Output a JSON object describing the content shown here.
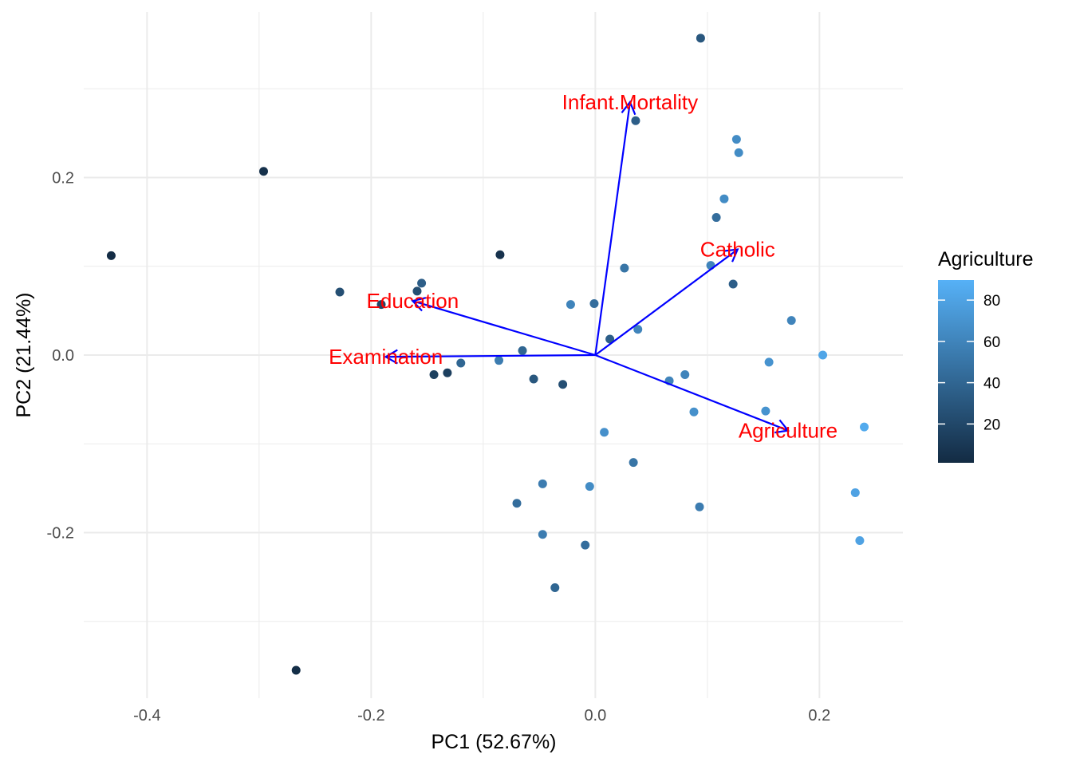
{
  "chart_data": {
    "type": "scatter",
    "xlabel": "PC1 (52.67%)",
    "ylabel": "PC2 (21.44%)",
    "xlim": [
      -0.4565,
      0.2745
    ],
    "ylim": [
      -0.3865,
      0.3865
    ],
    "x_ticks": [
      -0.4,
      -0.2,
      0.0,
      0.2
    ],
    "x_tick_labels": [
      "-0.4",
      "-0.2",
      "0.0",
      "0.2"
    ],
    "y_ticks": [
      -0.2,
      0.0,
      0.2
    ],
    "y_tick_labels": [
      "-0.2",
      "0.0",
      "0.2"
    ],
    "grid": true,
    "legend": {
      "title": "Agriculture",
      "placement": "right",
      "min": 1.2,
      "max": 89.7,
      "low_color": "#132B43",
      "high_color": "#56B1F7",
      "ticks": [
        20,
        40,
        60,
        80
      ],
      "tick_labels": [
        "20",
        "40",
        "60",
        "80"
      ]
    },
    "points": [
      {
        "x": 0.094,
        "y": 0.357,
        "agriculture": 30
      },
      {
        "x": 0.036,
        "y": 0.264,
        "agriculture": 35
      },
      {
        "x": 0.126,
        "y": 0.243,
        "agriculture": 65
      },
      {
        "x": 0.128,
        "y": 0.228,
        "agriculture": 65
      },
      {
        "x": -0.296,
        "y": 0.207,
        "agriculture": 5
      },
      {
        "x": 0.115,
        "y": 0.176,
        "agriculture": 65
      },
      {
        "x": 0.108,
        "y": 0.155,
        "agriculture": 45
      },
      {
        "x": -0.432,
        "y": 0.112,
        "agriculture": 2
      },
      {
        "x": -0.085,
        "y": 0.113,
        "agriculture": 6
      },
      {
        "x": 0.103,
        "y": 0.101,
        "agriculture": 60
      },
      {
        "x": 0.026,
        "y": 0.098,
        "agriculture": 50
      },
      {
        "x": 0.123,
        "y": 0.08,
        "agriculture": 35
      },
      {
        "x": -0.155,
        "y": 0.081,
        "agriculture": 35
      },
      {
        "x": -0.159,
        "y": 0.072,
        "agriculture": 25
      },
      {
        "x": -0.228,
        "y": 0.071,
        "agriculture": 25
      },
      {
        "x": -0.191,
        "y": 0.057,
        "agriculture": 20
      },
      {
        "x": -0.022,
        "y": 0.057,
        "agriculture": 60
      },
      {
        "x": -0.001,
        "y": 0.058,
        "agriculture": 45
      },
      {
        "x": 0.175,
        "y": 0.039,
        "agriculture": 60
      },
      {
        "x": 0.038,
        "y": 0.029,
        "agriculture": 60
      },
      {
        "x": 0.013,
        "y": 0.018,
        "agriculture": 35
      },
      {
        "x": -0.065,
        "y": 0.005,
        "agriculture": 40
      },
      {
        "x": 0.203,
        "y": 0.0,
        "agriculture": 82
      },
      {
        "x": -0.086,
        "y": -0.006,
        "agriculture": 55
      },
      {
        "x": 0.155,
        "y": -0.008,
        "agriculture": 70
      },
      {
        "x": -0.12,
        "y": -0.009,
        "agriculture": 40
      },
      {
        "x": -0.132,
        "y": -0.02,
        "agriculture": 15
      },
      {
        "x": -0.144,
        "y": -0.022,
        "agriculture": 15
      },
      {
        "x": 0.08,
        "y": -0.022,
        "agriculture": 60
      },
      {
        "x": 0.066,
        "y": -0.029,
        "agriculture": 60
      },
      {
        "x": -0.055,
        "y": -0.027,
        "agriculture": 30
      },
      {
        "x": -0.029,
        "y": -0.033,
        "agriculture": 25
      },
      {
        "x": 0.152,
        "y": -0.063,
        "agriculture": 70
      },
      {
        "x": 0.088,
        "y": -0.064,
        "agriculture": 68
      },
      {
        "x": 0.24,
        "y": -0.081,
        "agriculture": 85
      },
      {
        "x": 0.008,
        "y": -0.087,
        "agriculture": 68
      },
      {
        "x": 0.034,
        "y": -0.121,
        "agriculture": 50
      },
      {
        "x": -0.047,
        "y": -0.145,
        "agriculture": 55
      },
      {
        "x": -0.005,
        "y": -0.148,
        "agriculture": 65
      },
      {
        "x": -0.07,
        "y": -0.167,
        "agriculture": 45
      },
      {
        "x": 0.093,
        "y": -0.171,
        "agriculture": 55
      },
      {
        "x": 0.232,
        "y": -0.155,
        "agriculture": 80
      },
      {
        "x": -0.047,
        "y": -0.202,
        "agriculture": 55
      },
      {
        "x": -0.009,
        "y": -0.214,
        "agriculture": 45
      },
      {
        "x": 0.236,
        "y": -0.209,
        "agriculture": 80
      },
      {
        "x": -0.036,
        "y": -0.262,
        "agriculture": 40
      },
      {
        "x": -0.267,
        "y": -0.355,
        "agriculture": 3
      }
    ],
    "loadings": [
      {
        "name": "Infant.Mortality",
        "x": 0.031,
        "y": 0.285
      },
      {
        "name": "Catholic",
        "x": 0.127,
        "y": 0.119
      },
      {
        "name": "Education",
        "x": -0.163,
        "y": 0.061
      },
      {
        "name": "Examination",
        "x": -0.187,
        "y": -0.002
      },
      {
        "name": "Agriculture",
        "x": 0.172,
        "y": -0.085
      }
    ],
    "loading_arrow_color": "#0000ff",
    "loading_label_color": "#ff0000"
  }
}
